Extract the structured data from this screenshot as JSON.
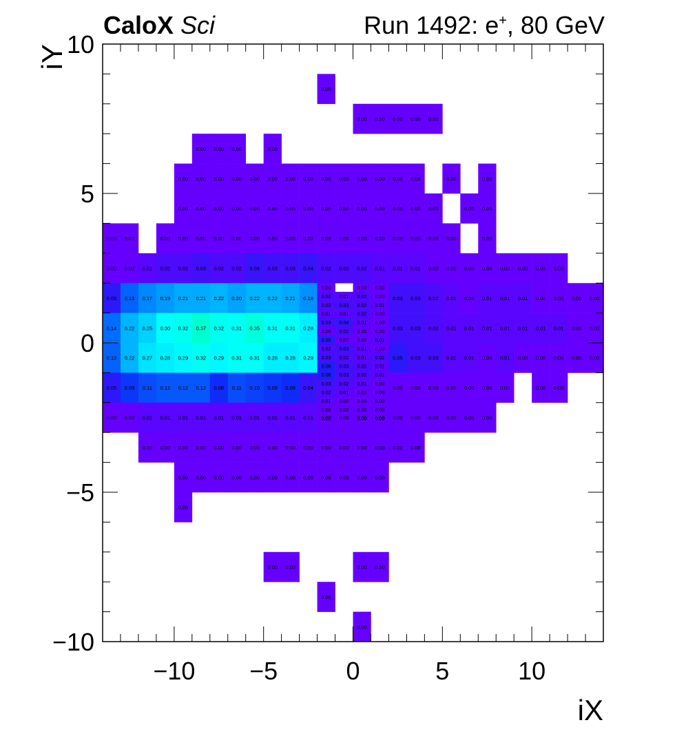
{
  "header": {
    "brand": "CaloX",
    "brand_suffix": "Sci",
    "run_label": "Run 1492: e",
    "run_sup": "+",
    "run_tail": ", 80 GeV"
  },
  "chart_data": {
    "type": "heatmap",
    "title": "",
    "xlabel": "iX",
    "ylabel": "iY",
    "xlim": [
      -14,
      14
    ],
    "ylim": [
      -10,
      10
    ],
    "xticks": [
      -10,
      -5,
      0,
      5,
      10
    ],
    "yticks": [
      -10,
      -5,
      0,
      5,
      10
    ],
    "xtick_labels": [
      "−10",
      "−5",
      "0",
      "5",
      "10"
    ],
    "ytick_labels": [
      "−10",
      "−5",
      "0",
      "5",
      "10"
    ],
    "cell_size": 1,
    "value_format": "2 decimals",
    "colormap": [
      "#6500ff",
      "#0f25f6",
      "#0075ff",
      "#00b6ff",
      "#00ffff",
      "#00ffd0"
    ],
    "zlim": [
      0,
      0.37
    ],
    "grid": false,
    "rows": [
      {
        "y": 8,
        "cells": [
          [
            -2,
            "0.00"
          ]
        ]
      },
      {
        "y": 7,
        "cells": [
          [
            0,
            "0.00"
          ],
          [
            1,
            "0.00"
          ],
          [
            2,
            "0.00"
          ],
          [
            3,
            "0.00"
          ],
          [
            4,
            "0.00"
          ]
        ]
      },
      {
        "y": 6,
        "cells": [
          [
            -9,
            "0.00"
          ],
          [
            -8,
            "0.00"
          ],
          [
            -7,
            "0.00"
          ],
          [
            -5,
            "0.00"
          ]
        ]
      },
      {
        "y": 5,
        "cells": [
          [
            -10,
            "0.00"
          ],
          [
            -9,
            "0.00"
          ],
          [
            -8,
            "0.00"
          ],
          [
            -7,
            "0.00"
          ],
          [
            -6,
            "0.00"
          ],
          [
            -5,
            "0.00"
          ],
          [
            -4,
            "0.00"
          ],
          [
            -3,
            "0.00"
          ],
          [
            -2,
            "0.00"
          ],
          [
            -1,
            "0.00"
          ],
          [
            0,
            "0.00"
          ],
          [
            1,
            "0.00"
          ],
          [
            2,
            "0.00"
          ],
          [
            3,
            "0.00"
          ],
          [
            5,
            "0.00"
          ],
          [
            7,
            "0.00"
          ]
        ]
      },
      {
        "y": 4,
        "cells": [
          [
            -10,
            "0.00"
          ],
          [
            -9,
            "0.00"
          ],
          [
            -8,
            "0.00"
          ],
          [
            -7,
            "0.00"
          ],
          [
            -6,
            "0.00"
          ],
          [
            -5,
            "0.00"
          ],
          [
            -4,
            "0.00"
          ],
          [
            -3,
            "0.00"
          ],
          [
            -2,
            "0.00"
          ],
          [
            -1,
            "0.00"
          ],
          [
            0,
            "0.00"
          ],
          [
            1,
            "0.00"
          ],
          [
            2,
            "0.00"
          ],
          [
            3,
            "0.00"
          ],
          [
            4,
            "0.00"
          ],
          [
            6,
            "0.00"
          ],
          [
            7,
            "0.00"
          ]
        ]
      },
      {
        "y": 3,
        "cells": [
          [
            -14,
            "0.00"
          ],
          [
            -13,
            "0.00"
          ],
          [
            -11,
            "0.00"
          ],
          [
            -10,
            "0.00"
          ],
          [
            -9,
            "0.00"
          ],
          [
            -8,
            "0.00"
          ],
          [
            -7,
            "0.00"
          ],
          [
            -6,
            "0.00"
          ],
          [
            -5,
            "0.00"
          ],
          [
            -4,
            "0.00"
          ],
          [
            -3,
            "0.00"
          ],
          [
            -2,
            "0.00"
          ],
          [
            -1,
            "0.00"
          ],
          [
            0,
            "0.00"
          ],
          [
            1,
            "0.00"
          ],
          [
            2,
            "0.00"
          ],
          [
            3,
            "0.00"
          ],
          [
            4,
            "0.00"
          ],
          [
            5,
            "0.00"
          ],
          [
            7,
            "0.00"
          ]
        ]
      },
      {
        "y": 2,
        "cells": [
          [
            -14,
            "0.00"
          ],
          [
            -13,
            "0.00"
          ],
          [
            -12,
            "0.01"
          ],
          [
            -11,
            "0.02"
          ],
          [
            -10,
            "0.02"
          ],
          [
            -9,
            "0.03"
          ],
          [
            -8,
            "0.02"
          ],
          [
            -7,
            "0.02"
          ],
          [
            -6,
            "0.04"
          ],
          [
            -5,
            "0.03"
          ],
          [
            -4,
            "0.03"
          ],
          [
            -3,
            "0.04"
          ],
          [
            -2,
            "0.02"
          ],
          [
            -1,
            "0.02"
          ],
          [
            0,
            "0.02"
          ],
          [
            1,
            "0.01"
          ],
          [
            2,
            "0.01"
          ],
          [
            3,
            "0.01"
          ],
          [
            4,
            "0.00"
          ],
          [
            5,
            "0.00"
          ],
          [
            6,
            "0.00"
          ],
          [
            7,
            "0.00"
          ],
          [
            8,
            "0.00"
          ],
          [
            9,
            "0.00"
          ],
          [
            10,
            "0.00"
          ],
          [
            11,
            "0.00"
          ]
        ]
      },
      {
        "y": 1,
        "cells": [
          [
            -14,
            "0.05"
          ],
          [
            -13,
            "0.13"
          ],
          [
            -12,
            "0.17"
          ],
          [
            -11,
            "0.19"
          ],
          [
            -10,
            "0.21"
          ],
          [
            -9,
            "0.21"
          ],
          [
            -8,
            "0.22"
          ],
          [
            -7,
            "0.20"
          ],
          [
            -6,
            "0.22"
          ],
          [
            -5,
            "0.22"
          ],
          [
            -4,
            "0.21"
          ],
          [
            -3,
            "0.18"
          ],
          [
            2,
            "0.03"
          ],
          [
            3,
            "0.03"
          ],
          [
            4,
            "0.02"
          ],
          [
            5,
            "0.01"
          ],
          [
            6,
            "0.00"
          ],
          [
            7,
            "0.01"
          ],
          [
            8,
            "0.01"
          ],
          [
            9,
            "0.01"
          ],
          [
            10,
            "0.00"
          ],
          [
            11,
            "0.00"
          ],
          [
            12,
            "0.00"
          ],
          [
            13,
            "0.00"
          ]
        ]
      },
      {
        "y": 0,
        "cells": [
          [
            -14,
            "0.14"
          ],
          [
            -13,
            "0.22"
          ],
          [
            -12,
            "0.25"
          ],
          [
            -11,
            "0.30"
          ],
          [
            -10,
            "0.32"
          ],
          [
            -9,
            "0.37"
          ],
          [
            -8,
            "0.32"
          ],
          [
            -7,
            "0.31"
          ],
          [
            -6,
            "0.35"
          ],
          [
            -5,
            "0.31"
          ],
          [
            -4,
            "0.31"
          ],
          [
            -3,
            "0.28"
          ],
          [
            2,
            "0.03"
          ],
          [
            3,
            "0.03"
          ],
          [
            4,
            "0.02"
          ],
          [
            5,
            "0.01"
          ],
          [
            6,
            "0.01"
          ],
          [
            7,
            "0.01"
          ],
          [
            8,
            "0.01"
          ],
          [
            9,
            "0.01"
          ],
          [
            10,
            "0.01"
          ],
          [
            11,
            "0.01"
          ],
          [
            12,
            "0.00"
          ],
          [
            13,
            "0.00"
          ]
        ]
      },
      {
        "y": -1,
        "cells": [
          [
            -14,
            "0.13"
          ],
          [
            -13,
            "0.22"
          ],
          [
            -12,
            "0.27"
          ],
          [
            -11,
            "0.28"
          ],
          [
            -10,
            "0.29"
          ],
          [
            -9,
            "0.32"
          ],
          [
            -8,
            "0.29"
          ],
          [
            -7,
            "0.31"
          ],
          [
            -6,
            "0.31"
          ],
          [
            -5,
            "0.28"
          ],
          [
            -4,
            "0.28"
          ],
          [
            -3,
            "0.29"
          ],
          [
            2,
            "0.05"
          ],
          [
            3,
            "0.03"
          ],
          [
            4,
            "0.03"
          ],
          [
            5,
            "0.01"
          ],
          [
            6,
            "0.01"
          ],
          [
            7,
            "0.00"
          ],
          [
            8,
            "0.01"
          ],
          [
            9,
            "0.00"
          ],
          [
            10,
            "0.00"
          ],
          [
            11,
            "0.00"
          ],
          [
            12,
            "0.00"
          ],
          [
            13,
            "0.00"
          ]
        ]
      },
      {
        "y": -2,
        "cells": [
          [
            -14,
            "0.05"
          ],
          [
            -13,
            "0.09"
          ],
          [
            -12,
            "0.11"
          ],
          [
            -11,
            "0.12"
          ],
          [
            -10,
            "0.12"
          ],
          [
            -9,
            "0.12"
          ],
          [
            -8,
            "0.08"
          ],
          [
            -7,
            "0.11"
          ],
          [
            -6,
            "0.10"
          ],
          [
            -5,
            "0.09"
          ],
          [
            -4,
            "0.08"
          ],
          [
            -3,
            "0.04"
          ],
          [
            2,
            "0.00"
          ],
          [
            3,
            "0.00"
          ],
          [
            4,
            "0.00"
          ],
          [
            5,
            "0.00"
          ],
          [
            6,
            "0.00"
          ],
          [
            7,
            "0.00"
          ],
          [
            8,
            "0.00"
          ],
          [
            10,
            "0.00"
          ],
          [
            11,
            "0.00"
          ]
        ]
      },
      {
        "y": -3,
        "cells": [
          [
            -14,
            "0.00"
          ],
          [
            -13,
            "0.00"
          ],
          [
            -12,
            "0.01"
          ],
          [
            -11,
            "0.01"
          ],
          [
            -10,
            "0.01"
          ],
          [
            -9,
            "0.01"
          ],
          [
            -8,
            "0.01"
          ],
          [
            -7,
            "0.01"
          ],
          [
            -6,
            "0.01"
          ],
          [
            -5,
            "0.01"
          ],
          [
            -4,
            "0.01"
          ],
          [
            -3,
            "0.01"
          ],
          [
            -2,
            "0.00"
          ],
          [
            -1,
            "0.00"
          ],
          [
            0,
            "0.00"
          ],
          [
            1,
            "0.00"
          ],
          [
            2,
            "0.00"
          ],
          [
            3,
            "0.00"
          ],
          [
            4,
            "0.00"
          ],
          [
            5,
            "0.00"
          ],
          [
            6,
            "0.00"
          ],
          [
            7,
            "0.00"
          ]
        ]
      },
      {
        "y": -4,
        "cells": [
          [
            -12,
            "0.00"
          ],
          [
            -11,
            "0.00"
          ],
          [
            -10,
            "0.00"
          ],
          [
            -9,
            "0.00"
          ],
          [
            -8,
            "0.00"
          ],
          [
            -7,
            "0.00"
          ],
          [
            -6,
            "0.00"
          ],
          [
            -5,
            "0.00"
          ],
          [
            -4,
            "0.00"
          ],
          [
            -3,
            "0.00"
          ],
          [
            -2,
            "0.00"
          ],
          [
            -1,
            "0.00"
          ],
          [
            0,
            "0.00"
          ],
          [
            1,
            "0.00"
          ],
          [
            2,
            "0.00"
          ],
          [
            3,
            "0.00"
          ]
        ]
      },
      {
        "y": -5,
        "cells": [
          [
            -10,
            "0.00"
          ],
          [
            -9,
            "0.00"
          ],
          [
            -8,
            "0.00"
          ],
          [
            -7,
            "0.00"
          ],
          [
            -6,
            "0.00"
          ],
          [
            -5,
            "0.00"
          ],
          [
            -4,
            "0.00"
          ],
          [
            -3,
            "0.00"
          ],
          [
            -2,
            "0.00"
          ],
          [
            -1,
            "0.00"
          ],
          [
            0,
            "0.00"
          ],
          [
            1,
            "0.00"
          ]
        ]
      },
      {
        "y": -6,
        "cells": [
          [
            -10,
            "0.00"
          ]
        ]
      },
      {
        "y": -8,
        "cells": [
          [
            -5,
            "0.00"
          ],
          [
            -4,
            "0.00"
          ],
          [
            0,
            "0.00"
          ],
          [
            1,
            "0.00"
          ]
        ]
      },
      {
        "y": -9,
        "cells": [
          [
            -2,
            "0.00"
          ]
        ]
      },
      {
        "y": -10,
        "cells": [
          [
            0,
            "0.00"
          ]
        ]
      }
    ],
    "fine_x": [
      -2,
      -1,
      0,
      1
    ],
    "fine_ylim": [
      -2.667,
      2
    ],
    "fine_step": 0.25,
    "fine_rows": [
      [
        "0.00",
        "",
        "0.00",
        "0.00"
      ],
      [
        "0.02",
        "0.01",
        "0.02",
        "0.00"
      ],
      [
        "0.02",
        "0.03",
        "0.02",
        "0.01"
      ],
      [
        "0.01",
        "0.01",
        "0.02",
        "0.00"
      ],
      [
        "0.03",
        "0.04",
        "0.01",
        "0.00"
      ],
      [
        "0.00",
        "0.02",
        "0.00",
        "0.00"
      ],
      [
        "0.05",
        "0.00",
        "0.00",
        "0.01"
      ],
      [
        "0.02",
        "0.03",
        "0.01",
        "0.00"
      ],
      [
        "0.03",
        "0.02",
        "0.01",
        "0.02"
      ],
      [
        "0.06",
        "0.03",
        "0.02",
        "0.01"
      ],
      [
        "0.06",
        "0.03",
        "0.02",
        "0.01"
      ],
      [
        "0.03",
        "0.02",
        "0.01",
        "0.00"
      ],
      [
        "0.02",
        "0.01",
        "0.00",
        "0.00"
      ],
      [
        "0.01",
        "0.00",
        "0.00",
        "0.00"
      ],
      [
        "0.00",
        "0.00",
        "0.00",
        "0.00"
      ],
      [
        "0.00",
        "",
        "0.00",
        "0.00"
      ]
    ]
  }
}
